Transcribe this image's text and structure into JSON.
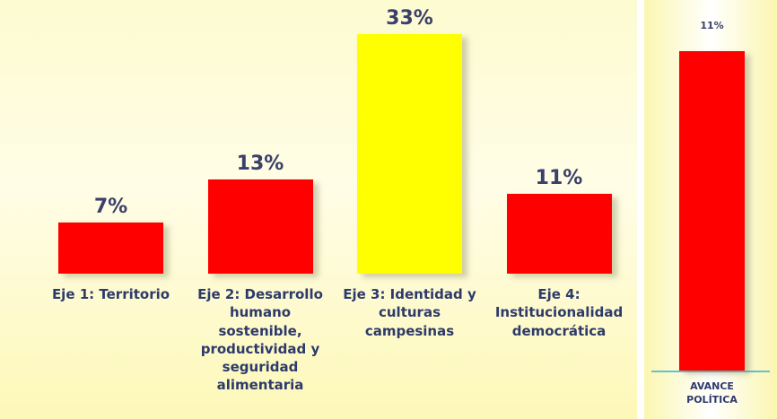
{
  "chart_data": [
    {
      "type": "bar",
      "categories": [
        "Eje 1: Territorio",
        "Eje 2: Desarrollo humano sostenible, productividad y seguridad alimentaria",
        "Eje 3: Identidad y culturas campesinas",
        "Eje 4: Institucionalidad democrática"
      ],
      "values": [
        7,
        13,
        33,
        11
      ],
      "value_labels": [
        "7%",
        "13%",
        "33%",
        "11%"
      ],
      "colors": [
        "#ff0000",
        "#ff0000",
        "#ffff00",
        "#ff0000"
      ],
      "ylim": [
        0,
        35
      ]
    },
    {
      "type": "bar",
      "categories": [
        "AVANCE POLÍTICA"
      ],
      "values": [
        11
      ],
      "value_labels": [
        "11%"
      ],
      "colors": [
        "#ff0000"
      ],
      "ylim": [
        0,
        12
      ]
    }
  ]
}
